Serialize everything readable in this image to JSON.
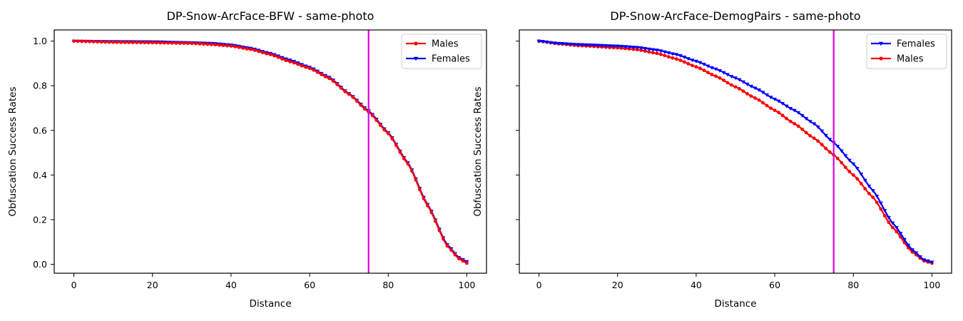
{
  "figure": {
    "background": "#ffffff"
  },
  "chart_data": [
    {
      "type": "line",
      "title": "DP-Snow-ArcFace-BFW - same-photo",
      "xlabel": "Distance",
      "ylabel": "Obfuscation Success Rates",
      "xlim": [
        -5,
        105
      ],
      "ylim": [
        -0.04,
        1.05
      ],
      "xticks": [
        0,
        20,
        40,
        60,
        80,
        100
      ],
      "yticks": [
        0.0,
        0.2,
        0.4,
        0.6,
        0.8,
        1.0
      ],
      "ytick_labels": [
        "0.0",
        "0.2",
        "0.4",
        "0.6",
        "0.8",
        "1.0"
      ],
      "show_ytick_labels": true,
      "grid": false,
      "legend_position": "top-right",
      "vline": {
        "x": 75,
        "color": "#dd00dd"
      },
      "series": [
        {
          "name": "Males",
          "color": "#ff0000",
          "marker": "circle",
          "points": [
            [
              0,
              1.0
            ],
            [
              10,
              0.995
            ],
            [
              20,
              0.993
            ],
            [
              30,
              0.99
            ],
            [
              35,
              0.985
            ],
            [
              40,
              0.978
            ],
            [
              45,
              0.963
            ],
            [
              50,
              0.94
            ],
            [
              55,
              0.908
            ],
            [
              60,
              0.878
            ],
            [
              65,
              0.833
            ],
            [
              70,
              0.762
            ],
            [
              75,
              0.683
            ],
            [
              80,
              0.586
            ],
            [
              85,
              0.45
            ],
            [
              90,
              0.263
            ],
            [
              95,
              0.082
            ],
            [
              98,
              0.025
            ],
            [
              100,
              0.005
            ]
          ]
        },
        {
          "name": "Females",
          "color": "#0000ff",
          "marker": "triangle-down",
          "points": [
            [
              0,
              1.0
            ],
            [
              10,
              0.998
            ],
            [
              20,
              0.997
            ],
            [
              30,
              0.993
            ],
            [
              35,
              0.99
            ],
            [
              40,
              0.983
            ],
            [
              45,
              0.968
            ],
            [
              50,
              0.945
            ],
            [
              55,
              0.915
            ],
            [
              60,
              0.883
            ],
            [
              65,
              0.838
            ],
            [
              70,
              0.765
            ],
            [
              75,
              0.688
            ],
            [
              80,
              0.59
            ],
            [
              85,
              0.455
            ],
            [
              90,
              0.268
            ],
            [
              95,
              0.088
            ],
            [
              98,
              0.03
            ],
            [
              100,
              0.012
            ]
          ]
        }
      ]
    },
    {
      "type": "line",
      "title": "DP-Snow-ArcFace-DemogPairs - same-photo",
      "xlabel": "Distance",
      "ylabel": "Obfuscation Success Rates",
      "xlim": [
        -5,
        105
      ],
      "ylim": [
        -0.04,
        1.05
      ],
      "xticks": [
        0,
        20,
        40,
        60,
        80,
        100
      ],
      "yticks": [
        0.0,
        0.2,
        0.4,
        0.6,
        0.8,
        1.0
      ],
      "ytick_labels": [
        "0.0",
        "0.2",
        "0.4",
        "0.6",
        "0.8",
        "1.0"
      ],
      "show_ytick_labels": false,
      "grid": false,
      "legend_position": "top-right",
      "vline": {
        "x": 75,
        "color": "#dd00dd"
      },
      "series": [
        {
          "name": "Females",
          "color": "#0000ff",
          "marker": "triangle-down",
          "points": [
            [
              0,
              1.0
            ],
            [
              5,
              0.99
            ],
            [
              10,
              0.985
            ],
            [
              20,
              0.978
            ],
            [
              25,
              0.972
            ],
            [
              30,
              0.96
            ],
            [
              35,
              0.94
            ],
            [
              40,
              0.91
            ],
            [
              45,
              0.875
            ],
            [
              50,
              0.835
            ],
            [
              55,
              0.79
            ],
            [
              60,
              0.74
            ],
            [
              65,
              0.69
            ],
            [
              70,
              0.63
            ],
            [
              75,
              0.545
            ],
            [
              80,
              0.45
            ],
            [
              85,
              0.33
            ],
            [
              90,
              0.185
            ],
            [
              95,
              0.065
            ],
            [
              98,
              0.02
            ],
            [
              100,
              0.01
            ]
          ]
        },
        {
          "name": "Males",
          "color": "#ff0000",
          "marker": "circle",
          "points": [
            [
              0,
              1.0
            ],
            [
              5,
              0.988
            ],
            [
              10,
              0.98
            ],
            [
              20,
              0.97
            ],
            [
              25,
              0.962
            ],
            [
              30,
              0.945
            ],
            [
              35,
              0.92
            ],
            [
              40,
              0.885
            ],
            [
              45,
              0.843
            ],
            [
              50,
              0.795
            ],
            [
              55,
              0.745
            ],
            [
              60,
              0.69
            ],
            [
              65,
              0.63
            ],
            [
              70,
              0.565
            ],
            [
              75,
              0.49
            ],
            [
              80,
              0.4
            ],
            [
              85,
              0.3
            ],
            [
              90,
              0.165
            ],
            [
              95,
              0.055
            ],
            [
              98,
              0.015
            ],
            [
              100,
              0.005
            ]
          ]
        }
      ]
    }
  ]
}
